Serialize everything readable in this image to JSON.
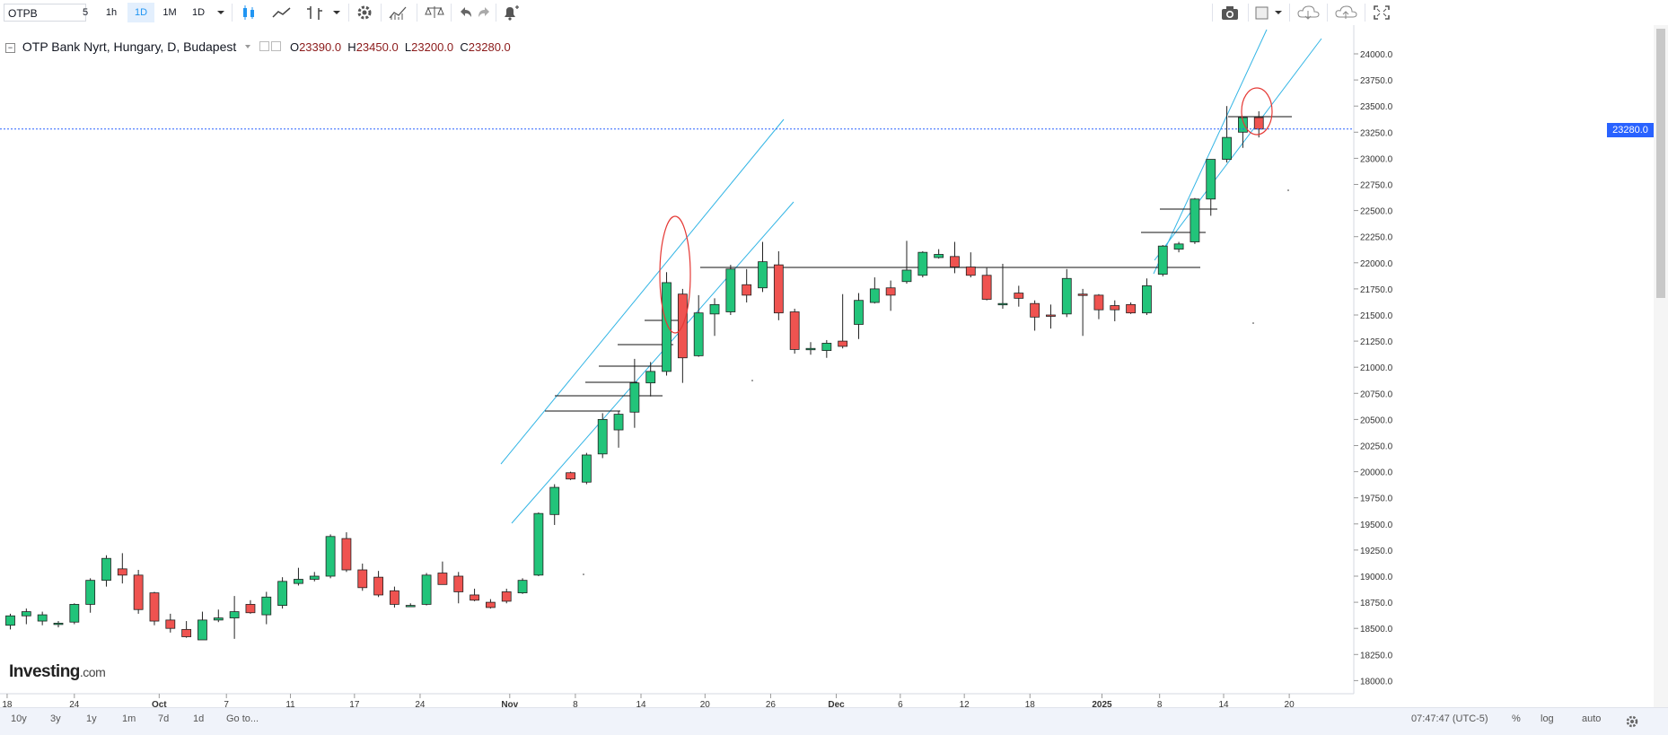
{
  "toolbar": {
    "symbol": "OTPB",
    "intervals": [
      "5",
      "1h",
      "1D",
      "1M",
      "1D"
    ],
    "active_interval": "1D"
  },
  "legend": {
    "title": "OTP Bank Nyrt, Hungary, D, Budapest",
    "open_label": "O",
    "open": "23390.0",
    "high_label": "H",
    "high": "23450.0",
    "low_label": "L",
    "low": "23200.0",
    "close_label": "C",
    "close": "23280.0"
  },
  "logo": {
    "brand": "Investing",
    "suffix": ".com"
  },
  "current_price_label": "23280.0",
  "bottom_bar": {
    "ranges": [
      "10y",
      "3y",
      "1y",
      "1m",
      "7d",
      "1d"
    ],
    "goto_label": "Go to...",
    "clock": "07:47:47 (UTC-5)",
    "percent_label": "%",
    "log_label": "log",
    "auto_label": "auto"
  },
  "colors": {
    "up": "#22c47a",
    "down": "#ef5350",
    "trendline": "#33b5e5",
    "marker": "#e53935",
    "price_line": "#2962ff"
  },
  "icons": [
    "candles-icon",
    "line-chart-icon",
    "ohlc-bars-icon",
    "gear-icon",
    "indicators-icon",
    "compare-icon",
    "undo-icon",
    "redo-icon",
    "alert-icon",
    "camera-icon",
    "layout-icon",
    "cloud-download-icon",
    "cloud-upload-icon",
    "fullscreen-icon"
  ],
  "chart_data": {
    "type": "candlestick",
    "y_ticks": [
      "24000.0",
      "23750.0",
      "23500.0",
      "23250.0",
      "23000.0",
      "22750.0",
      "22500.0",
      "22250.0",
      "22000.0",
      "21750.0",
      "21500.0",
      "21250.0",
      "21000.0",
      "20750.0",
      "20500.0",
      "20250.0",
      "20000.0",
      "19750.0",
      "19500.0",
      "19250.0",
      "19000.0",
      "18750.0",
      "18500.0",
      "18250.0",
      "18000.0"
    ],
    "x_ticks": [
      "18",
      "24",
      "Oct",
      "7",
      "11",
      "17",
      "24",
      "Nov",
      "8",
      "14",
      "20",
      "26",
      "Dec",
      "6",
      "12",
      "18",
      "2025",
      "8",
      "14",
      "20"
    ],
    "ylim": [
      17750,
      24350
    ],
    "candles": [
      {
        "o": 18530,
        "h": 18640,
        "l": 18490,
        "c": 18620
      },
      {
        "o": 18620,
        "h": 18690,
        "l": 18540,
        "c": 18660
      },
      {
        "o": 18570,
        "h": 18660,
        "l": 18530,
        "c": 18630
      },
      {
        "o": 18540,
        "h": 18570,
        "l": 18510,
        "c": 18550
      },
      {
        "o": 18560,
        "h": 18740,
        "l": 18540,
        "c": 18730
      },
      {
        "o": 18730,
        "h": 18980,
        "l": 18650,
        "c": 18960
      },
      {
        "o": 18960,
        "h": 19200,
        "l": 18900,
        "c": 19170
      },
      {
        "o": 19070,
        "h": 19220,
        "l": 18930,
        "c": 19010
      },
      {
        "o": 19010,
        "h": 19060,
        "l": 18640,
        "c": 18680
      },
      {
        "o": 18840,
        "h": 18850,
        "l": 18530,
        "c": 18570
      },
      {
        "o": 18580,
        "h": 18640,
        "l": 18460,
        "c": 18500
      },
      {
        "o": 18490,
        "h": 18570,
        "l": 18410,
        "c": 18420
      },
      {
        "o": 18390,
        "h": 18660,
        "l": 18390,
        "c": 18580
      },
      {
        "o": 18580,
        "h": 18680,
        "l": 18560,
        "c": 18600
      },
      {
        "o": 18600,
        "h": 18810,
        "l": 18400,
        "c": 18660
      },
      {
        "o": 18730,
        "h": 18770,
        "l": 18640,
        "c": 18650
      },
      {
        "o": 18630,
        "h": 18850,
        "l": 18540,
        "c": 18800
      },
      {
        "o": 18720,
        "h": 18990,
        "l": 18690,
        "c": 18950
      },
      {
        "o": 18930,
        "h": 19080,
        "l": 18910,
        "c": 18970
      },
      {
        "o": 18970,
        "h": 19040,
        "l": 18950,
        "c": 19000
      },
      {
        "o": 19000,
        "h": 19400,
        "l": 18980,
        "c": 19380
      },
      {
        "o": 19360,
        "h": 19420,
        "l": 19040,
        "c": 19060
      },
      {
        "o": 19060,
        "h": 19120,
        "l": 18860,
        "c": 18890
      },
      {
        "o": 18990,
        "h": 19050,
        "l": 18800,
        "c": 18820
      },
      {
        "o": 18860,
        "h": 18900,
        "l": 18700,
        "c": 18730
      },
      {
        "o": 18720,
        "h": 18740,
        "l": 18710,
        "c": 18720
      },
      {
        "o": 18730,
        "h": 19030,
        "l": 18720,
        "c": 19010
      },
      {
        "o": 19030,
        "h": 19140,
        "l": 18920,
        "c": 18920
      },
      {
        "o": 19000,
        "h": 19040,
        "l": 18740,
        "c": 18850
      },
      {
        "o": 18820,
        "h": 18880,
        "l": 18760,
        "c": 18770
      },
      {
        "o": 18750,
        "h": 18780,
        "l": 18690,
        "c": 18700
      },
      {
        "o": 18850,
        "h": 18880,
        "l": 18740,
        "c": 18760
      },
      {
        "o": 18840,
        "h": 18980,
        "l": 18830,
        "c": 18960
      },
      {
        "o": 19010,
        "h": 19610,
        "l": 19000,
        "c": 19600
      },
      {
        "o": 19590,
        "h": 19880,
        "l": 19490,
        "c": 19850
      },
      {
        "o": 19990,
        "h": 20000,
        "l": 19920,
        "c": 19930
      },
      {
        "o": 19900,
        "h": 20180,
        "l": 19880,
        "c": 20160
      },
      {
        "o": 20170,
        "h": 20560,
        "l": 20130,
        "c": 20500
      },
      {
        "o": 20400,
        "h": 20580,
        "l": 20230,
        "c": 20550
      },
      {
        "o": 20570,
        "h": 21080,
        "l": 20420,
        "c": 20850
      },
      {
        "o": 20850,
        "h": 21050,
        "l": 20720,
        "c": 20960
      },
      {
        "o": 20960,
        "h": 21910,
        "l": 20920,
        "c": 21810
      },
      {
        "o": 21700,
        "h": 21750,
        "l": 20850,
        "c": 21090
      },
      {
        "o": 21110,
        "h": 21690,
        "l": 21100,
        "c": 21520
      },
      {
        "o": 21510,
        "h": 21660,
        "l": 21300,
        "c": 21600
      },
      {
        "o": 21530,
        "h": 21980,
        "l": 21500,
        "c": 21940
      },
      {
        "o": 21790,
        "h": 21940,
        "l": 21620,
        "c": 21690
      },
      {
        "o": 21760,
        "h": 22200,
        "l": 21720,
        "c": 22010
      },
      {
        "o": 21980,
        "h": 22110,
        "l": 21450,
        "c": 21520
      },
      {
        "o": 21530,
        "h": 21560,
        "l": 21130,
        "c": 21170
      },
      {
        "o": 21180,
        "h": 21240,
        "l": 21120,
        "c": 21180
      },
      {
        "o": 21160,
        "h": 21260,
        "l": 21090,
        "c": 21230
      },
      {
        "o": 21250,
        "h": 21700,
        "l": 21180,
        "c": 21200
      },
      {
        "o": 21410,
        "h": 21710,
        "l": 21270,
        "c": 21640
      },
      {
        "o": 21620,
        "h": 21860,
        "l": 21610,
        "c": 21750
      },
      {
        "o": 21760,
        "h": 21830,
        "l": 21540,
        "c": 21690
      },
      {
        "o": 21820,
        "h": 22210,
        "l": 21800,
        "c": 21930
      },
      {
        "o": 21880,
        "h": 22110,
        "l": 21860,
        "c": 22100
      },
      {
        "o": 22050,
        "h": 22130,
        "l": 22040,
        "c": 22080
      },
      {
        "o": 22060,
        "h": 22200,
        "l": 21900,
        "c": 21960
      },
      {
        "o": 21960,
        "h": 22100,
        "l": 21860,
        "c": 21880
      },
      {
        "o": 21880,
        "h": 21950,
        "l": 21640,
        "c": 21650
      },
      {
        "o": 21600,
        "h": 21990,
        "l": 21560,
        "c": 21610
      },
      {
        "o": 21710,
        "h": 21780,
        "l": 21580,
        "c": 21660
      },
      {
        "o": 21610,
        "h": 21640,
        "l": 21350,
        "c": 21480
      },
      {
        "o": 21500,
        "h": 21600,
        "l": 21370,
        "c": 21490
      },
      {
        "o": 21510,
        "h": 21940,
        "l": 21480,
        "c": 21850
      },
      {
        "o": 21700,
        "h": 21750,
        "l": 21300,
        "c": 21690
      },
      {
        "o": 21690,
        "h": 21700,
        "l": 21460,
        "c": 21550
      },
      {
        "o": 21590,
        "h": 21640,
        "l": 21440,
        "c": 21550
      },
      {
        "o": 21600,
        "h": 21620,
        "l": 21510,
        "c": 21520
      },
      {
        "o": 21520,
        "h": 21850,
        "l": 21500,
        "c": 21780
      },
      {
        "o": 21890,
        "h": 22170,
        "l": 21870,
        "c": 22160
      },
      {
        "o": 22130,
        "h": 22200,
        "l": 22100,
        "c": 22180
      },
      {
        "o": 22200,
        "h": 22620,
        "l": 22180,
        "c": 22610
      },
      {
        "o": 22610,
        "h": 22990,
        "l": 22450,
        "c": 22990
      },
      {
        "o": 22990,
        "h": 23500,
        "l": 22960,
        "c": 23200
      },
      {
        "o": 23250,
        "h": 23400,
        "l": 23100,
        "c": 23390
      },
      {
        "o": 23390,
        "h": 23450,
        "l": 23200,
        "c": 23280
      }
    ]
  }
}
